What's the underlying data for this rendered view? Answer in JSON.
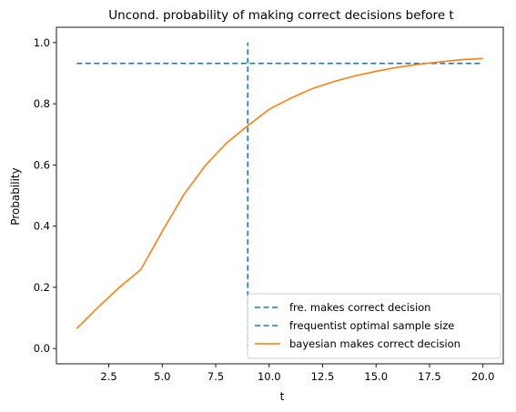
{
  "chart_data": {
    "type": "line",
    "title": "Uncond. probability of making correct decisions before t",
    "xlabel": "t",
    "ylabel": "Probability",
    "xlim": [
      0.05,
      20.95
    ],
    "ylim": [
      -0.05,
      1.05
    ],
    "x_ticks": [
      2.5,
      5.0,
      7.5,
      10.0,
      12.5,
      15.0,
      17.5,
      20.0
    ],
    "x_tick_labels": [
      "2.5",
      "5.0",
      "7.5",
      "10.0",
      "12.5",
      "15.0",
      "17.5",
      "20.0"
    ],
    "y_ticks": [
      0.0,
      0.2,
      0.4,
      0.6,
      0.8,
      1.0
    ],
    "y_tick_labels": [
      "0.0",
      "0.2",
      "0.4",
      "0.6",
      "0.8",
      "1.0"
    ],
    "grid": false,
    "legend_position": "lower-right",
    "series": [
      {
        "name": "fre. makes correct decision",
        "kind": "hline",
        "style": "dashed",
        "color": "#1f77b4",
        "y": 0.932,
        "x_range": [
          1,
          20
        ]
      },
      {
        "name": "frequentist optimal sample size",
        "kind": "vline",
        "style": "dashed",
        "color": "#1f77b4",
        "x": 9,
        "y_range": [
          0,
          1
        ]
      },
      {
        "name": "bayesian makes correct decision",
        "kind": "line",
        "style": "solid",
        "color": "#ff7f0e",
        "x": [
          1,
          2,
          3,
          4,
          5,
          6,
          7,
          8,
          9,
          10,
          11,
          12,
          13,
          14,
          15,
          16,
          17,
          18,
          19,
          20
        ],
        "y": [
          0.065,
          0.135,
          0.2,
          0.258,
          0.383,
          0.502,
          0.597,
          0.671,
          0.728,
          0.782,
          0.818,
          0.849,
          0.872,
          0.891,
          0.906,
          0.919,
          0.929,
          0.937,
          0.944,
          0.948
        ]
      }
    ]
  }
}
